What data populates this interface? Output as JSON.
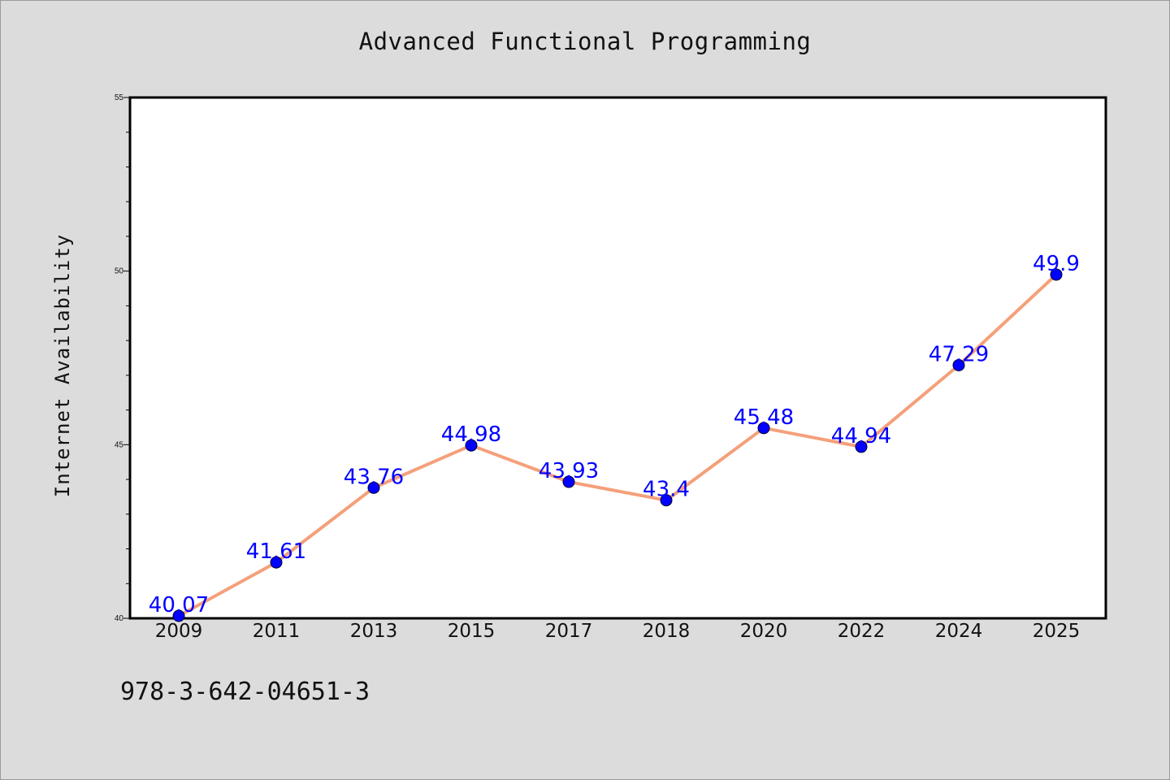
{
  "chart_data": {
    "type": "line",
    "title": "Advanced Functional Programming",
    "xlabel": "",
    "ylabel": "Internet Availability",
    "categories": [
      "2009",
      "2011",
      "2013",
      "2015",
      "2017",
      "2018",
      "2020",
      "2022",
      "2024",
      "2025"
    ],
    "series": [
      {
        "values": [
          40.07,
          41.61,
          43.76,
          44.98,
          43.93,
          43.4,
          45.48,
          44.94,
          47.29,
          49.9
        ],
        "labels": [
          "40.07",
          "41.61",
          "43.76",
          "44.98",
          "43.93",
          "43.4",
          "45.48",
          "44.94",
          "47.29",
          "49.9"
        ],
        "line_color": "#f4a07a",
        "marker_color": "#0000ff"
      }
    ],
    "ylim": [
      40,
      55
    ],
    "yticks": [
      "40",
      "45",
      "50",
      "55"
    ],
    "grid": false,
    "legend": "none"
  },
  "footer": {
    "code": "978-3-642-04651-3"
  }
}
